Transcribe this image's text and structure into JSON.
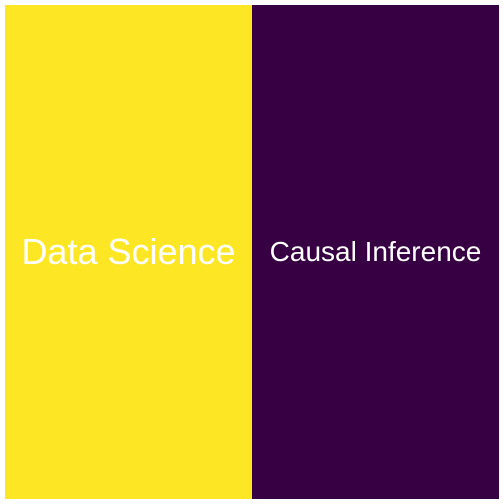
{
  "chart_data": {
    "type": "treemap",
    "title": "",
    "items": [
      {
        "label": "Data Science",
        "value": 1,
        "color": "#FDE725"
      },
      {
        "label": "Causal Inference",
        "value": 1,
        "color": "#360043"
      }
    ]
  }
}
